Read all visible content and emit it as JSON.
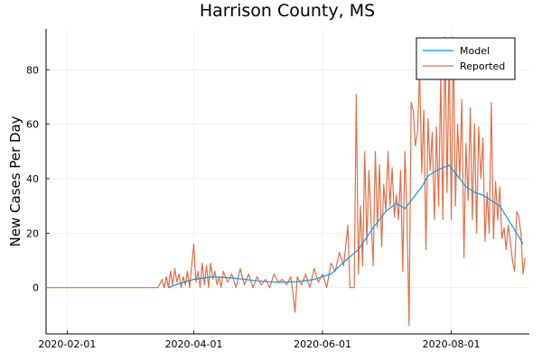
{
  "chart_data": {
    "type": "line",
    "title": "Harrison County, MS",
    "xlabel": "",
    "ylabel": "New Cases Per Day",
    "x_ticks": [
      "2020-02-01",
      "2020-04-01",
      "2020-06-01",
      "2020-08-01"
    ],
    "y_ticks": [
      0,
      20,
      40,
      60,
      80
    ],
    "xlim": [
      "2020-01-22",
      "2020-09-07"
    ],
    "ylim": [
      -17,
      95
    ],
    "grid": true,
    "legend_position": "top-right",
    "series": [
      {
        "name": "Model",
        "color": "#009af9",
        "points": [
          [
            "2020-03-20",
            0
          ],
          [
            "2020-03-25",
            1.5
          ],
          [
            "2020-04-01",
            3
          ],
          [
            "2020-04-10",
            4
          ],
          [
            "2020-04-20",
            3.5
          ],
          [
            "2020-05-01",
            2.5
          ],
          [
            "2020-05-10",
            2
          ],
          [
            "2020-05-20",
            2.2
          ],
          [
            "2020-05-28",
            3
          ],
          [
            "2020-06-05",
            5
          ],
          [
            "2020-06-12",
            10
          ],
          [
            "2020-06-18",
            14
          ],
          [
            "2020-06-25",
            22
          ],
          [
            "2020-07-01",
            28
          ],
          [
            "2020-07-06",
            31
          ],
          [
            "2020-07-10",
            29
          ],
          [
            "2020-07-14",
            33
          ],
          [
            "2020-07-18",
            37
          ],
          [
            "2020-07-21",
            41
          ],
          [
            "2020-07-25",
            43
          ],
          [
            "2020-07-28",
            44
          ],
          [
            "2020-07-31",
            45
          ],
          [
            "2020-08-04",
            41
          ],
          [
            "2020-08-08",
            37
          ],
          [
            "2020-08-12",
            35
          ],
          [
            "2020-08-16",
            34
          ],
          [
            "2020-08-20",
            32
          ],
          [
            "2020-08-24",
            30
          ],
          [
            "2020-08-28",
            25
          ],
          [
            "2020-09-01",
            20
          ],
          [
            "2020-09-04",
            16
          ]
        ]
      },
      {
        "name": "Reported",
        "color": "#e26f46",
        "points": [
          [
            "2020-01-22",
            0
          ],
          [
            "2020-03-15",
            0
          ],
          [
            "2020-03-17",
            3
          ],
          [
            "2020-03-18",
            0
          ],
          [
            "2020-03-19",
            4
          ],
          [
            "2020-03-20",
            0
          ],
          [
            "2020-03-21",
            6
          ],
          [
            "2020-03-22",
            1
          ],
          [
            "2020-03-23",
            7
          ],
          [
            "2020-03-24",
            2
          ],
          [
            "2020-03-25",
            5
          ],
          [
            "2020-03-26",
            0
          ],
          [
            "2020-03-27",
            4
          ],
          [
            "2020-03-28",
            1
          ],
          [
            "2020-03-29",
            6
          ],
          [
            "2020-03-30",
            0
          ],
          [
            "2020-04-01",
            16
          ],
          [
            "2020-04-02",
            2
          ],
          [
            "2020-04-03",
            6
          ],
          [
            "2020-04-04",
            0
          ],
          [
            "2020-04-05",
            9
          ],
          [
            "2020-04-06",
            1
          ],
          [
            "2020-04-07",
            8
          ],
          [
            "2020-04-08",
            0
          ],
          [
            "2020-04-09",
            9
          ],
          [
            "2020-04-10",
            3
          ],
          [
            "2020-04-11",
            6
          ],
          [
            "2020-04-12",
            1
          ],
          [
            "2020-04-13",
            4
          ],
          [
            "2020-04-14",
            0
          ],
          [
            "2020-04-15",
            6
          ],
          [
            "2020-04-17",
            2
          ],
          [
            "2020-04-19",
            5
          ],
          [
            "2020-04-21",
            0
          ],
          [
            "2020-04-23",
            7
          ],
          [
            "2020-04-25",
            1
          ],
          [
            "2020-04-27",
            5
          ],
          [
            "2020-04-29",
            0
          ],
          [
            "2020-05-01",
            4
          ],
          [
            "2020-05-03",
            1
          ],
          [
            "2020-05-05",
            3
          ],
          [
            "2020-05-07",
            0
          ],
          [
            "2020-05-09",
            5
          ],
          [
            "2020-05-11",
            2
          ],
          [
            "2020-05-13",
            3
          ],
          [
            "2020-05-15",
            1
          ],
          [
            "2020-05-17",
            4
          ],
          [
            "2020-05-19",
            -9
          ],
          [
            "2020-05-20",
            4
          ],
          [
            "2020-05-22",
            1
          ],
          [
            "2020-05-24",
            5
          ],
          [
            "2020-05-26",
            0
          ],
          [
            "2020-05-28",
            7
          ],
          [
            "2020-05-30",
            2
          ],
          [
            "2020-06-01",
            5
          ],
          [
            "2020-06-03",
            0
          ],
          [
            "2020-06-05",
            9
          ],
          [
            "2020-06-07",
            6
          ],
          [
            "2020-06-09",
            13
          ],
          [
            "2020-06-11",
            8
          ],
          [
            "2020-06-13",
            23
          ],
          [
            "2020-06-14",
            0
          ],
          [
            "2020-06-16",
            0
          ],
          [
            "2020-06-17",
            71
          ],
          [
            "2020-06-18",
            5
          ],
          [
            "2020-06-19",
            30
          ],
          [
            "2020-06-20",
            8
          ],
          [
            "2020-06-21",
            50
          ],
          [
            "2020-06-22",
            16
          ],
          [
            "2020-06-23",
            43
          ],
          [
            "2020-06-24",
            25
          ],
          [
            "2020-06-25",
            8
          ],
          [
            "2020-06-26",
            50
          ],
          [
            "2020-06-27",
            22
          ],
          [
            "2020-06-28",
            45
          ],
          [
            "2020-06-29",
            15
          ],
          [
            "2020-06-30",
            38
          ],
          [
            "2020-07-01",
            28
          ],
          [
            "2020-07-02",
            50
          ],
          [
            "2020-07-03",
            30
          ],
          [
            "2020-07-04",
            44
          ],
          [
            "2020-07-05",
            26
          ],
          [
            "2020-07-06",
            34
          ],
          [
            "2020-07-07",
            25
          ],
          [
            "2020-07-08",
            43
          ],
          [
            "2020-07-09",
            6
          ],
          [
            "2020-07-10",
            50
          ],
          [
            "2020-07-11",
            28
          ],
          [
            "2020-07-12",
            -14
          ],
          [
            "2020-07-13",
            68
          ],
          [
            "2020-07-14",
            65
          ],
          [
            "2020-07-15",
            52
          ],
          [
            "2020-07-16",
            57
          ],
          [
            "2020-07-17",
            80
          ],
          [
            "2020-07-18",
            42
          ],
          [
            "2020-07-19",
            65
          ],
          [
            "2020-07-20",
            14
          ],
          [
            "2020-07-21",
            62
          ],
          [
            "2020-07-22",
            43
          ],
          [
            "2020-07-23",
            57
          ],
          [
            "2020-07-24",
            25
          ],
          [
            "2020-07-25",
            59
          ],
          [
            "2020-07-26",
            30
          ],
          [
            "2020-07-27",
            78
          ],
          [
            "2020-07-28",
            25
          ],
          [
            "2020-07-29",
            92
          ],
          [
            "2020-07-30",
            35
          ],
          [
            "2020-07-31",
            86
          ],
          [
            "2020-08-01",
            25
          ],
          [
            "2020-08-02",
            92
          ],
          [
            "2020-08-03",
            30
          ],
          [
            "2020-08-04",
            60
          ],
          [
            "2020-08-05",
            40
          ],
          [
            "2020-08-06",
            69
          ],
          [
            "2020-08-07",
            11
          ],
          [
            "2020-08-08",
            53
          ],
          [
            "2020-08-09",
            32
          ],
          [
            "2020-08-10",
            66
          ],
          [
            "2020-08-11",
            25
          ],
          [
            "2020-08-12",
            60
          ],
          [
            "2020-08-13",
            20
          ],
          [
            "2020-08-14",
            59
          ],
          [
            "2020-08-15",
            40
          ],
          [
            "2020-08-16",
            55
          ],
          [
            "2020-08-17",
            17
          ],
          [
            "2020-08-18",
            35
          ],
          [
            "2020-08-19",
            20
          ],
          [
            "2020-08-20",
            68
          ],
          [
            "2020-08-21",
            18
          ],
          [
            "2020-08-22",
            39
          ],
          [
            "2020-08-23",
            25
          ],
          [
            "2020-08-24",
            37
          ],
          [
            "2020-08-25",
            18
          ],
          [
            "2020-08-26",
            22
          ],
          [
            "2020-08-27",
            14
          ],
          [
            "2020-08-28",
            23
          ],
          [
            "2020-08-29",
            17
          ],
          [
            "2020-08-30",
            10
          ],
          [
            "2020-08-31",
            6
          ],
          [
            "2020-09-01",
            28
          ],
          [
            "2020-09-02",
            26
          ],
          [
            "2020-09-03",
            20
          ],
          [
            "2020-09-04",
            5
          ],
          [
            "2020-09-05",
            11
          ]
        ]
      }
    ]
  }
}
